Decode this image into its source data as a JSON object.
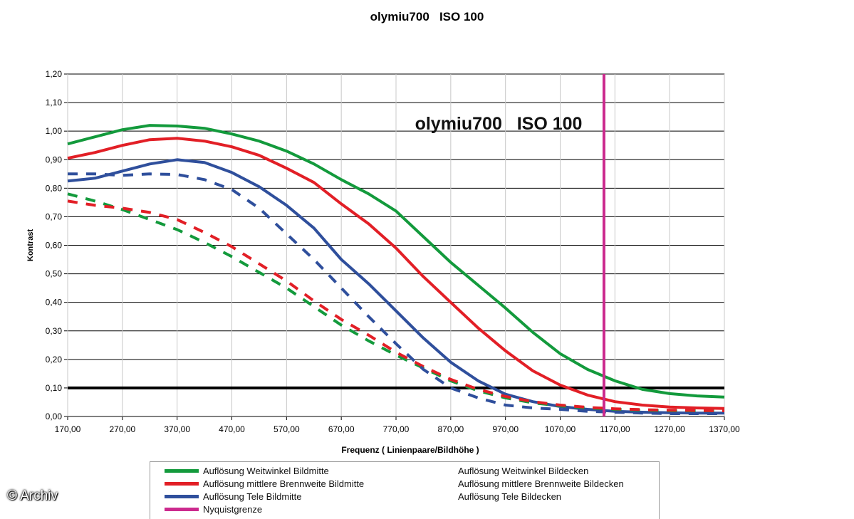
{
  "page": {
    "title": "olymiu700   ISO 100",
    "credit": "© Archiv"
  },
  "chart_data": {
    "type": "line",
    "title": "olymiu700   ISO 100",
    "inner_title": "olymiu700   ISO 100",
    "xlabel": "Frequenz ( Linienpaare/Bildhöhe )",
    "ylabel": "Kontrast",
    "xlim": [
      170,
      1370
    ],
    "ylim": [
      0,
      1.2
    ],
    "x_ticks": [
      "170,00",
      "270,00",
      "370,00",
      "470,00",
      "570,00",
      "670,00",
      "770,00",
      "870,00",
      "970,00",
      "1070,00",
      "1170,00",
      "1270,00",
      "1370,00"
    ],
    "y_ticks": [
      "0,00",
      "0,10",
      "0,20",
      "0,30",
      "0,40",
      "0,50",
      "0,60",
      "0,70",
      "0,80",
      "0,90",
      "1,00",
      "1,10",
      "1,20"
    ],
    "grid": true,
    "legend_position": "bottom",
    "series": [
      {
        "name": "Auflösung Weitwinkel Bildmitte",
        "color": "#139a3c",
        "style": "solid",
        "x": [
          170,
          220,
          270,
          320,
          370,
          420,
          470,
          520,
          570,
          620,
          670,
          720,
          770,
          820,
          870,
          920,
          970,
          1020,
          1070,
          1120,
          1170,
          1220,
          1270,
          1320,
          1370
        ],
        "y": [
          0.955,
          0.98,
          1.005,
          1.02,
          1.018,
          1.01,
          0.99,
          0.965,
          0.93,
          0.885,
          0.83,
          0.78,
          0.72,
          0.63,
          0.54,
          0.46,
          0.38,
          0.295,
          0.22,
          0.165,
          0.125,
          0.095,
          0.08,
          0.072,
          0.068
        ]
      },
      {
        "name": "Auflösung mittlere Brennweite Bildmitte",
        "color": "#e21f26",
        "style": "solid",
        "x": [
          170,
          220,
          270,
          320,
          370,
          420,
          470,
          520,
          570,
          620,
          670,
          720,
          770,
          820,
          870,
          920,
          970,
          1020,
          1070,
          1120,
          1170,
          1220,
          1270,
          1320,
          1370
        ],
        "y": [
          0.905,
          0.925,
          0.95,
          0.97,
          0.975,
          0.965,
          0.945,
          0.915,
          0.87,
          0.82,
          0.745,
          0.675,
          0.59,
          0.49,
          0.4,
          0.31,
          0.23,
          0.16,
          0.11,
          0.075,
          0.052,
          0.04,
          0.033,
          0.03,
          0.028
        ]
      },
      {
        "name": "Auflösung Tele Bildmitte",
        "color": "#2f4f9c",
        "style": "solid",
        "x": [
          170,
          220,
          270,
          320,
          370,
          420,
          470,
          520,
          570,
          620,
          670,
          720,
          770,
          820,
          870,
          920,
          970,
          1020,
          1070,
          1120,
          1170,
          1220,
          1270,
          1320,
          1370
        ],
        "y": [
          0.825,
          0.835,
          0.86,
          0.885,
          0.9,
          0.89,
          0.855,
          0.805,
          0.74,
          0.66,
          0.55,
          0.465,
          0.37,
          0.275,
          0.19,
          0.125,
          0.078,
          0.052,
          0.035,
          0.025,
          0.018,
          0.015,
          0.013,
          0.012,
          0.012
        ]
      },
      {
        "name": "Auflösung Weitwinkel Bildecken",
        "color": "#139a3c",
        "style": "dashed",
        "x": [
          170,
          220,
          270,
          320,
          370,
          420,
          470,
          520,
          570,
          620,
          670,
          720,
          770,
          820,
          870,
          920,
          970,
          1020,
          1070,
          1120,
          1170,
          1220,
          1270,
          1320,
          1370
        ],
        "y": [
          0.78,
          0.755,
          0.725,
          0.69,
          0.655,
          0.61,
          0.56,
          0.505,
          0.45,
          0.385,
          0.32,
          0.265,
          0.215,
          0.17,
          0.125,
          0.09,
          0.065,
          0.048,
          0.037,
          0.03,
          0.025,
          0.022,
          0.02,
          0.02,
          0.02
        ]
      },
      {
        "name": "Auflösung mittlere Brennweite Bildecken",
        "color": "#e21f26",
        "style": "dashed",
        "x": [
          170,
          220,
          270,
          320,
          370,
          420,
          470,
          520,
          570,
          620,
          670,
          720,
          770,
          820,
          870,
          920,
          970,
          1020,
          1070,
          1120,
          1170,
          1220,
          1270,
          1320,
          1370
        ],
        "y": [
          0.755,
          0.74,
          0.73,
          0.715,
          0.69,
          0.645,
          0.595,
          0.535,
          0.475,
          0.405,
          0.34,
          0.285,
          0.225,
          0.175,
          0.13,
          0.095,
          0.07,
          0.052,
          0.04,
          0.032,
          0.027,
          0.024,
          0.022,
          0.021,
          0.02
        ]
      },
      {
        "name": "Auflösung Tele Bildecken",
        "color": "#2f4f9c",
        "style": "dashed",
        "x": [
          170,
          220,
          270,
          320,
          370,
          420,
          470,
          520,
          570,
          620,
          670,
          720,
          770,
          820,
          870,
          920,
          970,
          1020,
          1070,
          1120,
          1170,
          1220,
          1270,
          1320,
          1370
        ],
        "y": [
          0.85,
          0.85,
          0.845,
          0.85,
          0.848,
          0.83,
          0.795,
          0.73,
          0.64,
          0.55,
          0.45,
          0.35,
          0.255,
          0.165,
          0.1,
          0.065,
          0.04,
          0.03,
          0.025,
          0.018,
          0.015,
          0.012,
          0.01,
          0.01,
          0.01
        ]
      },
      {
        "name": "Nyquistgrenze",
        "color": "#cc2a8e",
        "style": "vertical",
        "x_value": 1150
      }
    ],
    "reference_line": {
      "y": 0.1,
      "color": "#000000"
    }
  }
}
